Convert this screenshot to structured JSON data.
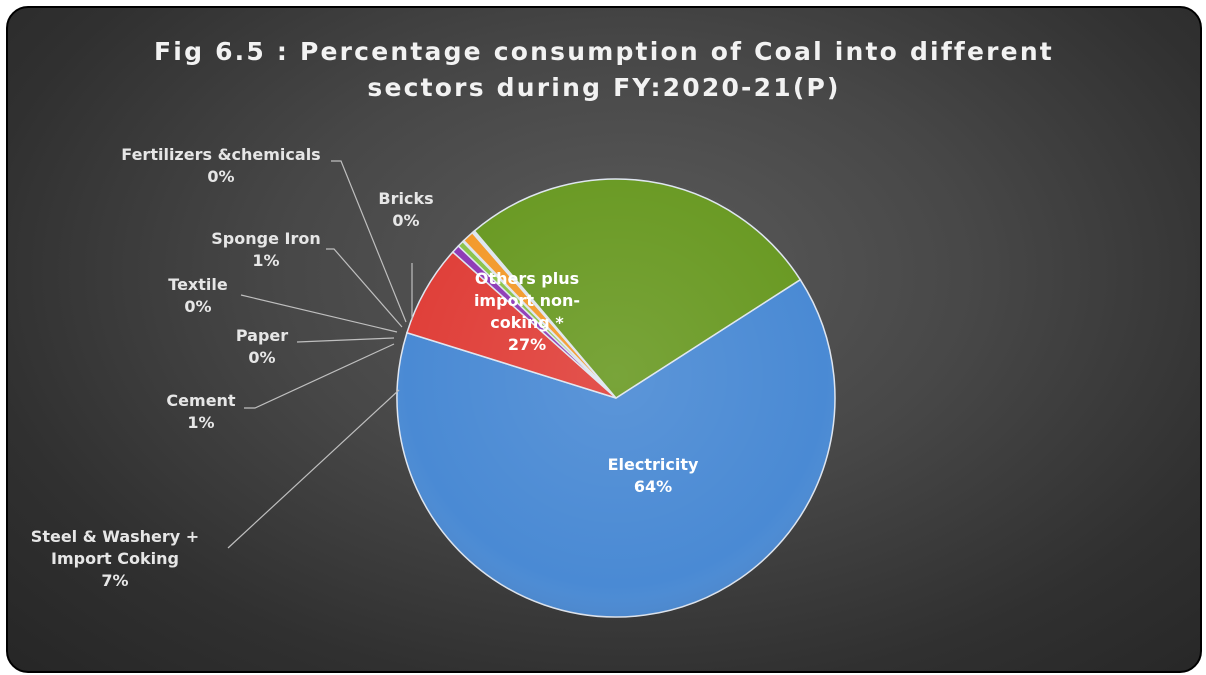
{
  "chart_data": {
    "type": "pie",
    "title_line1": "Fig 6.5 : Percentage consumption of Coal into different",
    "title_line2": "sectors during FY:2020-21(P)",
    "slices": [
      {
        "label_lines": [
          "Electricity"
        ],
        "pct": "64%",
        "value": 63.9,
        "color": "#4a8ad4"
      },
      {
        "label_lines": [
          "Steel  & Washery +",
          "Import Coking"
        ],
        "pct": "7%",
        "value": 6.8,
        "color": "#e0403a"
      },
      {
        "label_lines": [
          "Cement"
        ],
        "pct": "1%",
        "value": 0.6,
        "color": "#8e3ab6"
      },
      {
        "label_lines": [
          "Paper"
        ],
        "pct": "0%",
        "value": 0.45,
        "color": "#8bc34a"
      },
      {
        "label_lines": [
          "Textile"
        ],
        "pct": "0%",
        "value": 0.1,
        "color": "#3aa6c6"
      },
      {
        "label_lines": [
          "Sponge Iron"
        ],
        "pct": "1%",
        "value": 0.85,
        "color": "#f39a2c"
      },
      {
        "label_lines": [
          "Fertilizers &chemicals"
        ],
        "pct": "0%",
        "value": 0.1,
        "color": "#5a7fcf"
      },
      {
        "label_lines": [
          "Bricks"
        ],
        "pct": "0%",
        "value": 0.1,
        "color": "#c94a4a"
      },
      {
        "label_lines": [
          "Others plus",
          "import non-",
          "coking *"
        ],
        "pct": "27%",
        "value": 27.1,
        "color": "#6a9a24"
      }
    ],
    "legend": "none"
  }
}
